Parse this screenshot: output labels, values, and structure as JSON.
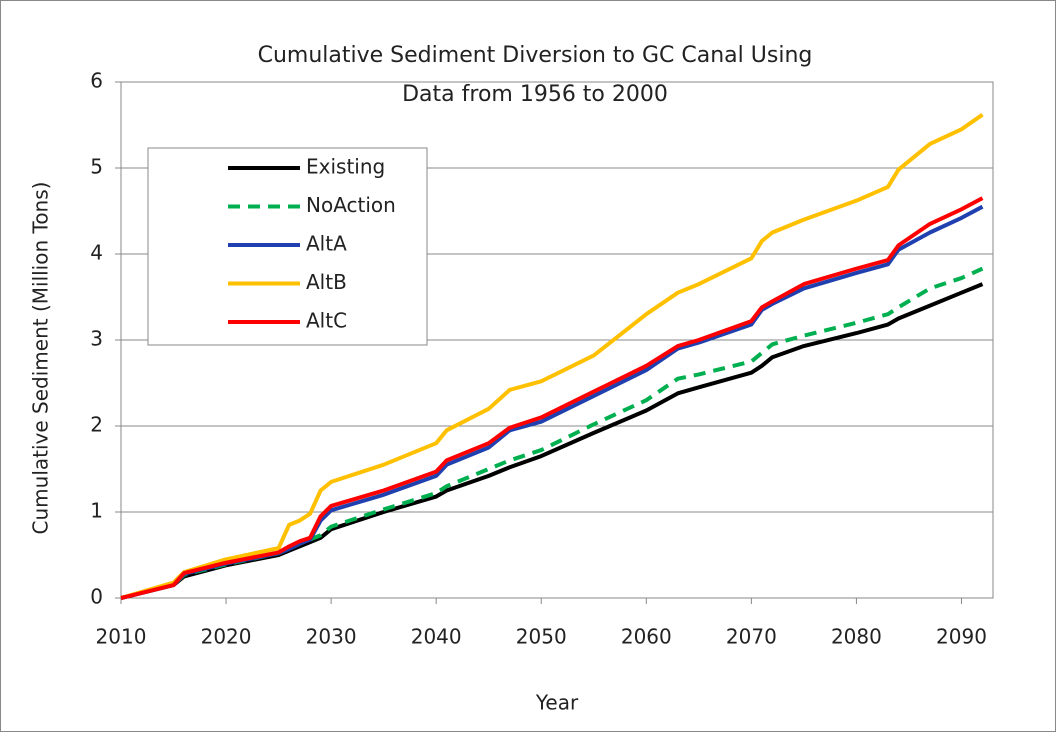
{
  "chart_data": {
    "type": "line",
    "title": [
      "Cumulative Sediment  Diversion to GC Canal      Using",
      "Data from 1956 to 2000"
    ],
    "x_label": "Year",
    "y_label": "Cumulative Sediment (Million Tons)",
    "x": [
      2010,
      2015,
      2016,
      2020,
      2025,
      2026,
      2027,
      2028,
      2029,
      2030,
      2035,
      2040,
      2041,
      2045,
      2047,
      2050,
      2055,
      2060,
      2063,
      2065,
      2070,
      2071,
      2072,
      2075,
      2080,
      2083,
      2084,
      2087,
      2090,
      2092
    ],
    "xlim": [
      2010,
      2093
    ],
    "xticks": [
      2010,
      2020,
      2030,
      2040,
      2050,
      2060,
      2070,
      2080,
      2090
    ],
    "ylim": [
      0,
      6
    ],
    "yticks": [
      0,
      1,
      2,
      3,
      4,
      5,
      6
    ],
    "grid": true,
    "legend": "upper-left",
    "series": [
      {
        "name": "Existing",
        "color": "#000000",
        "dash": false,
        "values": [
          0,
          0.15,
          0.25,
          0.38,
          0.5,
          0.55,
          0.6,
          0.65,
          0.7,
          0.8,
          1.0,
          1.18,
          1.25,
          1.42,
          1.52,
          1.65,
          1.92,
          2.18,
          2.38,
          2.45,
          2.62,
          2.7,
          2.8,
          2.93,
          3.08,
          3.18,
          3.25,
          3.4,
          3.55,
          3.65
        ]
      },
      {
        "name": "NoAction",
        "color": "#00b050",
        "dash": true,
        "values": [
          0,
          0.15,
          0.27,
          0.39,
          0.52,
          0.57,
          0.63,
          0.68,
          0.73,
          0.83,
          1.03,
          1.22,
          1.3,
          1.5,
          1.6,
          1.72,
          2.02,
          2.3,
          2.55,
          2.6,
          2.75,
          2.85,
          2.95,
          3.05,
          3.2,
          3.3,
          3.38,
          3.6,
          3.72,
          3.83
        ]
      },
      {
        "name": "AltA",
        "color": "#2040b0",
        "dash": false,
        "values": [
          0,
          0.15,
          0.28,
          0.4,
          0.52,
          0.57,
          0.63,
          0.68,
          0.9,
          1.02,
          1.2,
          1.42,
          1.55,
          1.75,
          1.95,
          2.05,
          2.35,
          2.65,
          2.9,
          2.97,
          3.18,
          3.35,
          3.42,
          3.6,
          3.78,
          3.88,
          4.05,
          4.25,
          4.42,
          4.55
        ]
      },
      {
        "name": "AltB",
        "color": "#ffc000",
        "dash": false,
        "values": [
          0,
          0.18,
          0.3,
          0.45,
          0.58,
          0.85,
          0.9,
          0.98,
          1.25,
          1.35,
          1.55,
          1.8,
          1.95,
          2.2,
          2.42,
          2.52,
          2.82,
          3.3,
          3.55,
          3.65,
          3.95,
          4.15,
          4.25,
          4.4,
          4.62,
          4.78,
          4.98,
          5.28,
          5.45,
          5.62
        ]
      },
      {
        "name": "AltC",
        "color": "#ff0000",
        "dash": false,
        "values": [
          0,
          0.15,
          0.29,
          0.41,
          0.53,
          0.6,
          0.66,
          0.7,
          0.95,
          1.07,
          1.25,
          1.47,
          1.6,
          1.8,
          1.98,
          2.1,
          2.4,
          2.7,
          2.93,
          3.0,
          3.22,
          3.38,
          3.45,
          3.65,
          3.83,
          3.93,
          4.1,
          4.35,
          4.52,
          4.65
        ]
      }
    ]
  }
}
